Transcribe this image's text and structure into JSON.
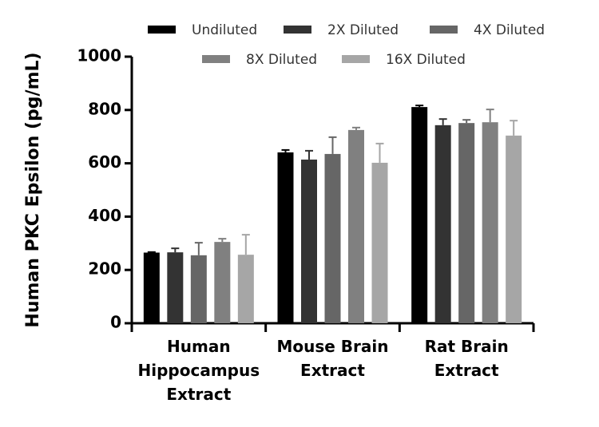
{
  "chart_data": {
    "type": "bar",
    "y_label": "Human PKC Epsilon (pg/mL)",
    "categories": [
      [
        "Human",
        "Hippocampus",
        "Extract"
      ],
      [
        "Mouse Brain",
        "Extract"
      ],
      [
        "Rat Brain",
        "Extract"
      ]
    ],
    "series": [
      {
        "name": "Undiluted",
        "color": "#000000",
        "values": [
          265,
          641,
          811
        ],
        "errors": [
          2,
          9,
          6
        ]
      },
      {
        "name": "2X Diluted",
        "color": "#333333",
        "values": [
          266,
          614,
          743
        ],
        "errors": [
          15,
          33,
          23
        ]
      },
      {
        "name": "4X Diluted",
        "color": "#666666",
        "values": [
          255,
          635,
          751
        ],
        "errors": [
          47,
          63,
          12
        ]
      },
      {
        "name": "8X Diluted",
        "color": "#808080",
        "values": [
          305,
          725,
          754
        ],
        "errors": [
          12,
          9,
          48
        ]
      },
      {
        "name": "16X Diluted",
        "color": "#a6a6a6",
        "values": [
          257,
          602,
          704
        ],
        "errors": [
          75,
          72,
          56
        ]
      }
    ],
    "ylim": [
      0,
      1000
    ],
    "yticks": [
      0,
      200,
      400,
      600,
      800,
      1000
    ],
    "grid": false
  }
}
